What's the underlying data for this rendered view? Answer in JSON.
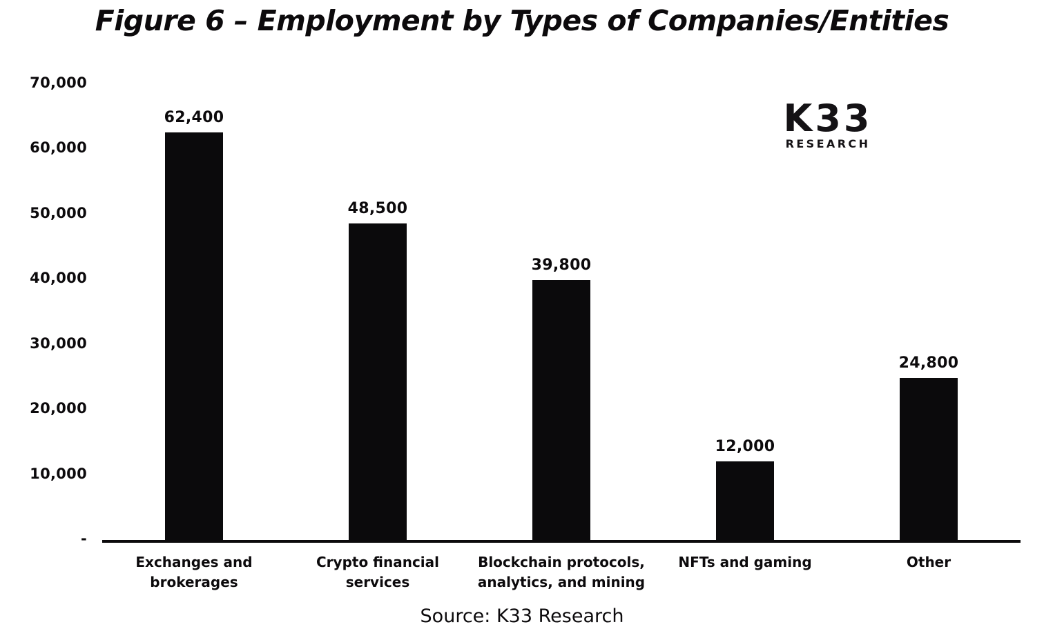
{
  "chart_data": {
    "type": "bar",
    "title": "Figure 6 – Employment by Types of Companies/Entities",
    "categories": [
      "Exchanges and brokerages",
      "Crypto financial services",
      "Blockchain protocols,\nanalytics, and mining",
      "NFTs and gaming",
      "Other"
    ],
    "values": [
      62400,
      48500,
      39800,
      12000,
      24800
    ],
    "value_labels": [
      "62,400",
      "48,500",
      "39,800",
      "12,000",
      "24,800"
    ],
    "xlabel": "",
    "ylabel": "",
    "ylim": [
      0,
      70000
    ],
    "ytick_labels": [
      "70,000",
      "60,000",
      "50,000",
      "40,000",
      "30,000",
      "20,000",
      "10,000",
      "-"
    ],
    "grid": false,
    "legend": "none",
    "bar_color": "#0b0a0c",
    "source": "Source: K33 Research"
  },
  "logo": {
    "k33": "K33",
    "research": "RESEARCH"
  }
}
